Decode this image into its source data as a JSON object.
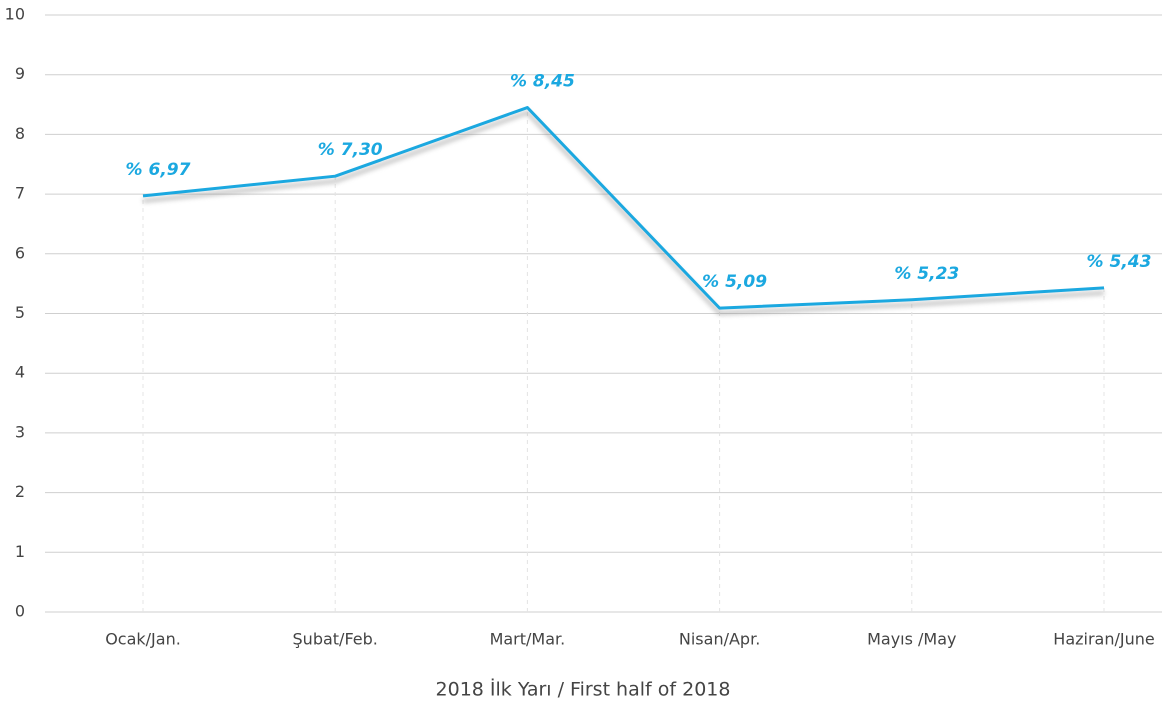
{
  "chart_data": {
    "type": "line",
    "x_label": "2018 İlk Yarı / First half of 2018",
    "categories": [
      "Ocak/Jan.",
      "Şubat/Feb.",
      "Mart/Mar.",
      "Nisan/Apr.",
      "Mayıs /May",
      "Haziran/June"
    ],
    "series": [
      {
        "name": null,
        "color": "#1ba8e0",
        "values": [
          6.97,
          7.3,
          8.45,
          5.09,
          5.23,
          5.43
        ],
        "value_labels": [
          "% 6,97",
          "% 7,30",
          "% 8,45",
          "% 5,09",
          "% 5,23",
          "% 5,43"
        ]
      }
    ],
    "ylim": [
      0,
      10
    ],
    "yticks": [
      0,
      1,
      2,
      3,
      4,
      5,
      6,
      7,
      8,
      9,
      10
    ],
    "grid": true
  }
}
